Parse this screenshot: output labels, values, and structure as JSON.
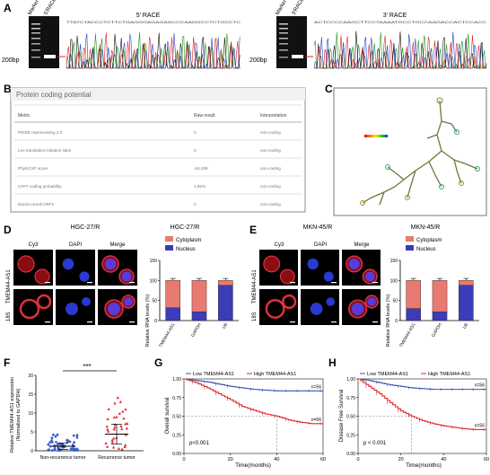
{
  "panels": {
    "A": "A",
    "B": "B",
    "C": "C",
    "D": "D",
    "E": "E",
    "F": "F",
    "G": "G",
    "H": "H"
  },
  "panel_a": {
    "left": {
      "marker": "Marker",
      "race": "5'RACE",
      "title": "5' RACE",
      "bp": "200bp",
      "seq": "TTATCTACCCTCTTCTGAGGGAGAGAGCCCAAGGCCTCTGCCTC"
    },
    "right": {
      "marker": "Marker",
      "race": "3'RACE",
      "title": "3' RACE",
      "bp": "200bp",
      "seq": "ACTCCCCAAGCTTCCTAAAATGCCTGCCAAGACCACTCCACC"
    }
  },
  "panel_b": {
    "title": "Protein coding potential",
    "headers": [
      "Metric",
      "Raw result",
      "Interpretation"
    ],
    "rows": [
      [
        "PRIDE reprocessing 2.0",
        "0",
        "non-coding"
      ],
      [
        "Lee translation initiation sites",
        "0",
        "non-coding"
      ],
      [
        "PhyloCSF score",
        "-84.258",
        "non-coding"
      ],
      [
        "CPAT coding probability",
        "1.92%",
        "non-coding"
      ],
      [
        "Bazzini small ORFs",
        "0",
        "non-coding"
      ]
    ]
  },
  "panel_d": {
    "cell_title": "HGC-27/R",
    "col_labels": [
      "Cy3",
      "DAPI",
      "Merge"
    ],
    "row_labels": [
      "TMEM44-AS1",
      "18S"
    ],
    "chart_title": "HGC-27/R",
    "legend": [
      "Cytoplasm",
      "Nucleus"
    ],
    "ylabel": "Relative RNA levels (%)",
    "yticks": [
      "0",
      "50",
      "100",
      "150"
    ],
    "categories": [
      "TMEM44-AS1",
      "GAPDH",
      "U6"
    ]
  },
  "panel_e": {
    "cell_title": "MKN-45/R",
    "col_labels": [
      "Cy3",
      "DAPI",
      "Merge"
    ],
    "row_labels": [
      "TMEM44-AS1",
      "18S"
    ],
    "chart_title": "MKN-45/R",
    "legend": [
      "Cytoplasm",
      "Nucleus"
    ],
    "ylabel": "Relative RNA levels (%)",
    "yticks": [
      "0",
      "50",
      "100",
      "150"
    ],
    "categories": [
      "TMEM44-AS1",
      "GAPDH",
      "U6"
    ]
  },
  "panel_f": {
    "ylabel1": "Relative TMEM44-AS1 expression",
    "ylabel2": "(Normalized to GAPDH)",
    "yticks": [
      "0",
      "5",
      "10",
      "15",
      "20"
    ],
    "categories": [
      "Non-recurrence tumor",
      "Recurrence tumor"
    ],
    "sig": "***"
  },
  "panel_g": {
    "legend": [
      "Low TMEM44-AS1",
      "High TMEM44-AS1"
    ],
    "ylabel": "Overall survival",
    "xlabel": "Time(months)",
    "yticks": [
      "0.00",
      "0.25",
      "0.50",
      "0.75",
      "1.00"
    ],
    "xticks": [
      "0",
      "20",
      "40",
      "60"
    ],
    "n_low": "n=56",
    "n_high": "n=56",
    "p": "p<0.001"
  },
  "panel_h": {
    "legend": [
      "Low TMEM44-AS1",
      "High TMEM44-AS1"
    ],
    "ylabel": "Disease Free Survival",
    "xlabel": "Time(months)",
    "yticks": [
      "0.00",
      "0.25",
      "0.50",
      "0.75",
      "1.00"
    ],
    "xticks": [
      "0",
      "20",
      "40",
      "60"
    ],
    "n_low": "n=56",
    "n_high": "n=56",
    "p": "p < 0.001"
  },
  "colors": {
    "cytoplasm": "#e87a72",
    "nucleus": "#3c3cb8",
    "low": "#3d52b0",
    "high": "#e0262b"
  },
  "chart_data": [
    {
      "type": "bar",
      "title": "HGC-27/R",
      "categories": [
        "TMEM44-AS1",
        "GAPDH",
        "U6"
      ],
      "series": [
        {
          "name": "Nucleus",
          "values": [
            32,
            22,
            88
          ]
        },
        {
          "name": "Cytoplasm",
          "values": [
            68,
            78,
            12
          ]
        }
      ],
      "ylim": [
        0,
        150
      ]
    },
    {
      "type": "bar",
      "title": "MKN-45/R",
      "categories": [
        "TMEM44-AS1",
        "GAPDH",
        "U6"
      ],
      "series": [
        {
          "name": "Nucleus",
          "values": [
            30,
            22,
            88
          ]
        },
        {
          "name": "Cytoplasm",
          "values": [
            70,
            78,
            12
          ]
        }
      ],
      "ylim": [
        0,
        150
      ]
    },
    {
      "type": "scatter",
      "categories": [
        "Non-recurrence tumor",
        "Recurrence tumor"
      ],
      "mean": [
        1.2,
        4.4
      ],
      "sd_upper": [
        2.0,
        7.0
      ],
      "sd_lower": [
        0.4,
        1.8
      ],
      "max": [
        4.6,
        14.5
      ],
      "ylim": [
        0,
        20
      ]
    },
    {
      "type": "line",
      "ylabel": "Overall survival",
      "xlim": [
        0,
        60
      ],
      "ylim": [
        0,
        1
      ],
      "series": [
        {
          "name": "Low TMEM44-AS1",
          "x": [
            0,
            5,
            10,
            15,
            20,
            25,
            30,
            35,
            40,
            45,
            50,
            55,
            60
          ],
          "y": [
            1.0,
            0.98,
            0.96,
            0.93,
            0.9,
            0.88,
            0.86,
            0.85,
            0.84,
            0.84,
            0.84,
            0.84,
            0.84
          ]
        },
        {
          "name": "High TMEM44-AS1",
          "x": [
            0,
            5,
            10,
            15,
            20,
            25,
            30,
            35,
            40,
            45,
            50,
            55,
            60
          ],
          "y": [
            1.0,
            0.95,
            0.88,
            0.8,
            0.72,
            0.63,
            0.58,
            0.53,
            0.5,
            0.45,
            0.42,
            0.4,
            0.4
          ]
        }
      ]
    },
    {
      "type": "line",
      "ylabel": "Disease Free Survival",
      "xlim": [
        0,
        60
      ],
      "ylim": [
        0,
        1
      ],
      "series": [
        {
          "name": "Low TMEM44-AS1",
          "x": [
            0,
            5,
            10,
            15,
            20,
            25,
            30,
            35,
            40,
            45,
            50,
            55,
            60
          ],
          "y": [
            1.0,
            0.98,
            0.95,
            0.92,
            0.9,
            0.88,
            0.87,
            0.86,
            0.86,
            0.86,
            0.86,
            0.86,
            0.86
          ]
        },
        {
          "name": "High TMEM44-AS1",
          "x": [
            0,
            5,
            10,
            15,
            20,
            25,
            30,
            35,
            40,
            45,
            50,
            55,
            60
          ],
          "y": [
            1.0,
            0.9,
            0.8,
            0.68,
            0.57,
            0.5,
            0.44,
            0.4,
            0.37,
            0.35,
            0.33,
            0.32,
            0.32
          ]
        }
      ]
    }
  ]
}
